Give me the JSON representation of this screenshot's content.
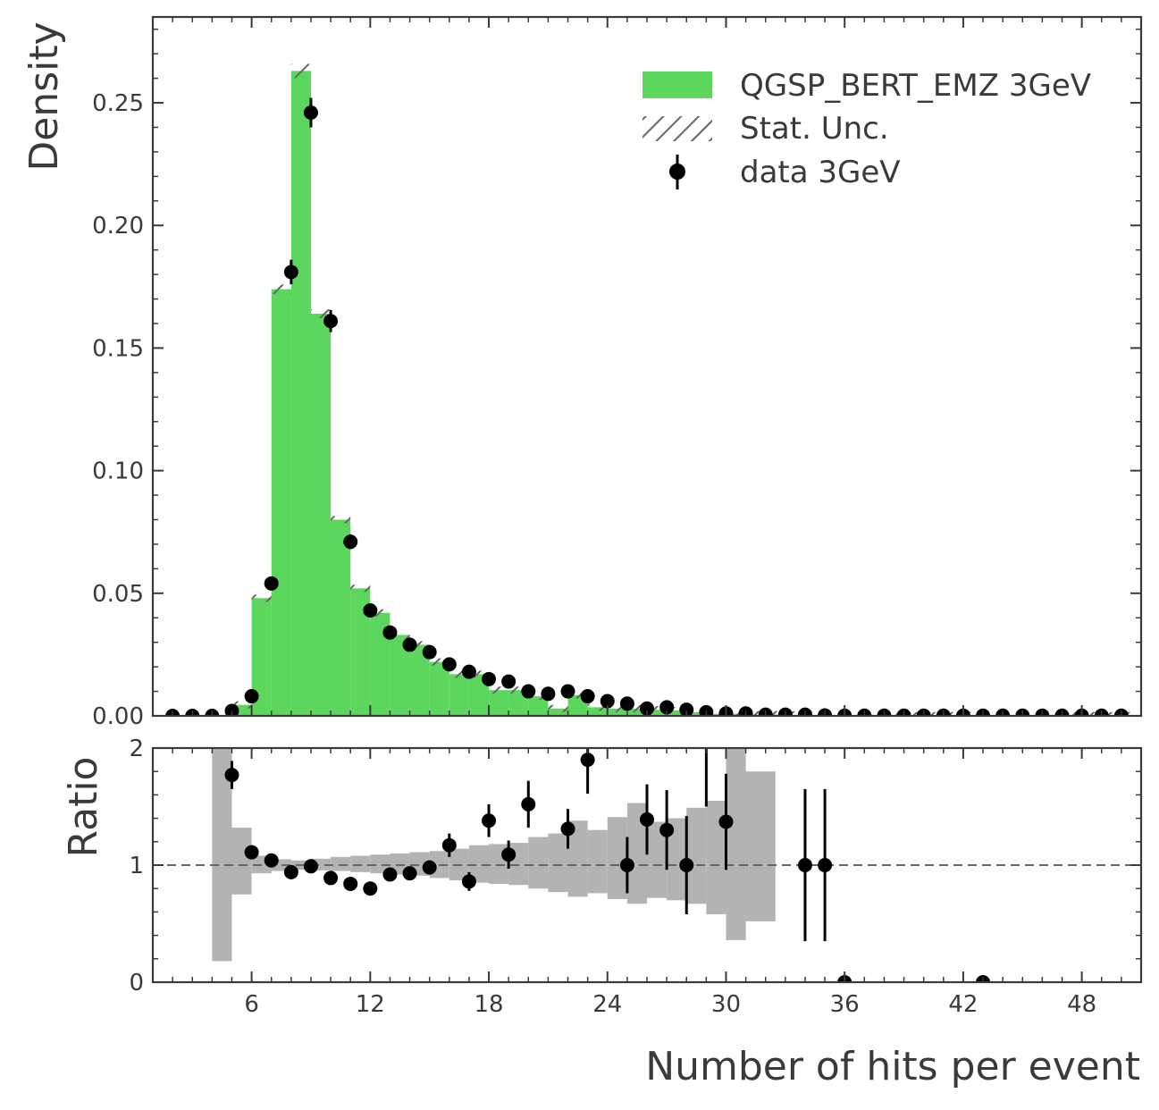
{
  "chart_data": [
    {
      "type": "bar",
      "panel": "main",
      "ylabel": "Density",
      "xlim": [
        1,
        51
      ],
      "ylim": [
        0,
        0.285
      ],
      "xticks": [
        6,
        12,
        18,
        24,
        30,
        36,
        42,
        48
      ],
      "yticks": [
        0.0,
        0.05,
        0.1,
        0.15,
        0.2,
        0.25
      ],
      "ytick_labels": [
        "0.00",
        "0.05",
        "0.10",
        "0.15",
        "0.20",
        "0.25"
      ],
      "legend_placement": "top-right",
      "series": [
        {
          "name": "QGSP_BERT_EMZ 3GeV",
          "kind": "step-filled histogram",
          "color": "#5cd65c",
          "bin_edges": [
            1,
            2,
            3,
            4,
            5,
            6,
            7,
            8,
            9,
            10,
            11,
            12,
            13,
            14,
            15,
            16,
            17,
            18,
            19,
            20,
            21,
            22,
            23,
            24,
            25,
            26,
            27,
            28,
            29,
            30,
            31,
            32,
            33,
            34,
            35,
            36,
            37,
            38,
            39,
            40,
            41,
            42,
            43,
            44,
            45,
            46,
            47,
            48,
            49,
            50,
            51
          ],
          "values": [
            0,
            0,
            0,
            0,
            0.0045,
            0.048,
            0.174,
            0.263,
            0.164,
            0.08,
            0.052,
            0.042,
            0.033,
            0.029,
            0.022,
            0.017,
            0.017,
            0.0105,
            0.0105,
            0.008,
            0.003,
            0.0085,
            0.0035,
            0.003,
            0.003,
            0.0025,
            0.0022,
            0.0015,
            0.0008,
            0.0008,
            0.0005,
            0.0005,
            0.0004,
            0.0003,
            0.0003,
            0.0002,
            0.0002,
            0.0002,
            0.0001,
            0.0001,
            0.0001,
            0.0001,
            0.0001,
            0.0001,
            0.0001,
            0.0001,
            0.0001,
            0.0001,
            0.0001,
            0.0001
          ]
        },
        {
          "name": "Stat. Unc.",
          "kind": "hatched band",
          "color": "#777777"
        },
        {
          "name": "data 3GeV",
          "kind": "points with error bars",
          "color": "#000000",
          "x": [
            2,
            3,
            4,
            5,
            6,
            7,
            8,
            9,
            10,
            11,
            12,
            13,
            14,
            15,
            16,
            17,
            18,
            19,
            20,
            21,
            22,
            23,
            24,
            25,
            26,
            27,
            28,
            29,
            30,
            31,
            32,
            33,
            34,
            35,
            36,
            37,
            38,
            39,
            40,
            41,
            42,
            43,
            44,
            45,
            46,
            47,
            48,
            49,
            50
          ],
          "y": [
            0,
            0,
            0,
            0.002,
            0.008,
            0.054,
            0.181,
            0.246,
            0.161,
            0.071,
            0.043,
            0.034,
            0.029,
            0.026,
            0.021,
            0.018,
            0.015,
            0.014,
            0.01,
            0.009,
            0.01,
            0.008,
            0.006,
            0.005,
            0.003,
            0.0035,
            0.0025,
            0.0015,
            0.001,
            0.001,
            0.0005,
            0.0005,
            0.0005,
            0.0002,
            0.0001,
            0.0001,
            0.0001,
            0.0001,
            0.0001,
            0.0001,
            0.0001,
            0.0001,
            0.0001,
            0.0001,
            0.0001,
            0.0001,
            0.0001,
            0.0001,
            0.0001
          ],
          "yerr": [
            0,
            0,
            0,
            0.0006,
            0.0012,
            0.0025,
            0.005,
            0.006,
            0.0045,
            0.003,
            0.002,
            0.0015,
            0.0012,
            0.0011,
            0.001,
            0.001,
            0.0009,
            0.0009,
            0.0008,
            0.0008,
            0.0008,
            0.0007,
            0.0006,
            0.0006,
            0.0005,
            0.0005,
            0.0004,
            0.0004,
            0.0003,
            0.0003,
            0.0002,
            0.0002,
            0.0002,
            0.0001,
            0.0001,
            0.0001,
            0.0001,
            0.0001,
            0.0001,
            0.0001,
            0.0001,
            0.0001,
            0.0001,
            0.0001,
            0.0001,
            0.0001,
            0.0001,
            0.0001,
            0.0001
          ]
        }
      ]
    },
    {
      "type": "scatter",
      "panel": "ratio",
      "xlabel": "Number of hits per event",
      "ylabel": "Ratio",
      "xlim": [
        1,
        51
      ],
      "ylim": [
        0,
        2
      ],
      "xticks": [
        6,
        12,
        18,
        24,
        30,
        36,
        42,
        48
      ],
      "yticks": [
        0,
        1,
        2
      ],
      "reference_line": 1,
      "uncertainty_band": {
        "color": "#b3b3b3",
        "bin_edges": [
          4,
          5,
          6,
          7,
          8,
          9,
          10,
          11,
          12,
          13,
          14,
          15,
          16,
          17,
          18,
          19,
          20,
          21,
          22,
          23,
          24,
          25,
          26,
          27,
          28,
          29,
          30,
          31,
          32.5,
          35.5
        ],
        "low": [
          0.18,
          0.75,
          0.93,
          0.95,
          0.96,
          0.955,
          0.95,
          0.94,
          0.93,
          0.92,
          0.91,
          0.89,
          0.87,
          0.85,
          0.84,
          0.83,
          0.8,
          0.77,
          0.73,
          0.76,
          0.71,
          0.67,
          0.72,
          0.7,
          0.67,
          0.58,
          0.36,
          0.52,
          null,
          0.18
        ],
        "high": [
          2.0,
          1.32,
          1.08,
          1.05,
          1.04,
          1.055,
          1.07,
          1.08,
          1.09,
          1.1,
          1.11,
          1.12,
          1.14,
          1.17,
          1.18,
          1.19,
          1.24,
          1.27,
          1.38,
          1.3,
          1.41,
          1.53,
          1.37,
          1.4,
          1.49,
          1.55,
          2.0,
          1.8,
          null,
          2.0
        ]
      },
      "points": {
        "color": "#000000",
        "x": [
          5,
          6,
          7,
          8,
          9,
          10,
          11,
          12,
          13,
          14,
          15,
          16,
          17,
          18,
          19,
          20,
          22,
          23,
          25,
          26,
          27,
          28,
          29,
          30,
          34,
          35,
          36,
          43
        ],
        "y": [
          1.77,
          1.11,
          1.04,
          0.94,
          0.99,
          0.89,
          0.84,
          0.8,
          0.92,
          0.93,
          0.98,
          1.17,
          0.86,
          1.38,
          1.09,
          1.52,
          1.31,
          1.9,
          1.0,
          1.39,
          1.3,
          1.0,
          2.2,
          1.37,
          1.0,
          1.0,
          0.0,
          0.0
        ],
        "yerr": [
          0.12,
          0.04,
          0.03,
          0.03,
          0.03,
          0.04,
          0.04,
          0.05,
          0.05,
          0.05,
          0.06,
          0.1,
          0.08,
          0.14,
          0.12,
          0.2,
          0.17,
          0.29,
          0.24,
          0.3,
          0.34,
          0.42,
          0.7,
          0.41,
          0.65,
          0.65,
          0.0,
          0.0
        ]
      }
    }
  ]
}
